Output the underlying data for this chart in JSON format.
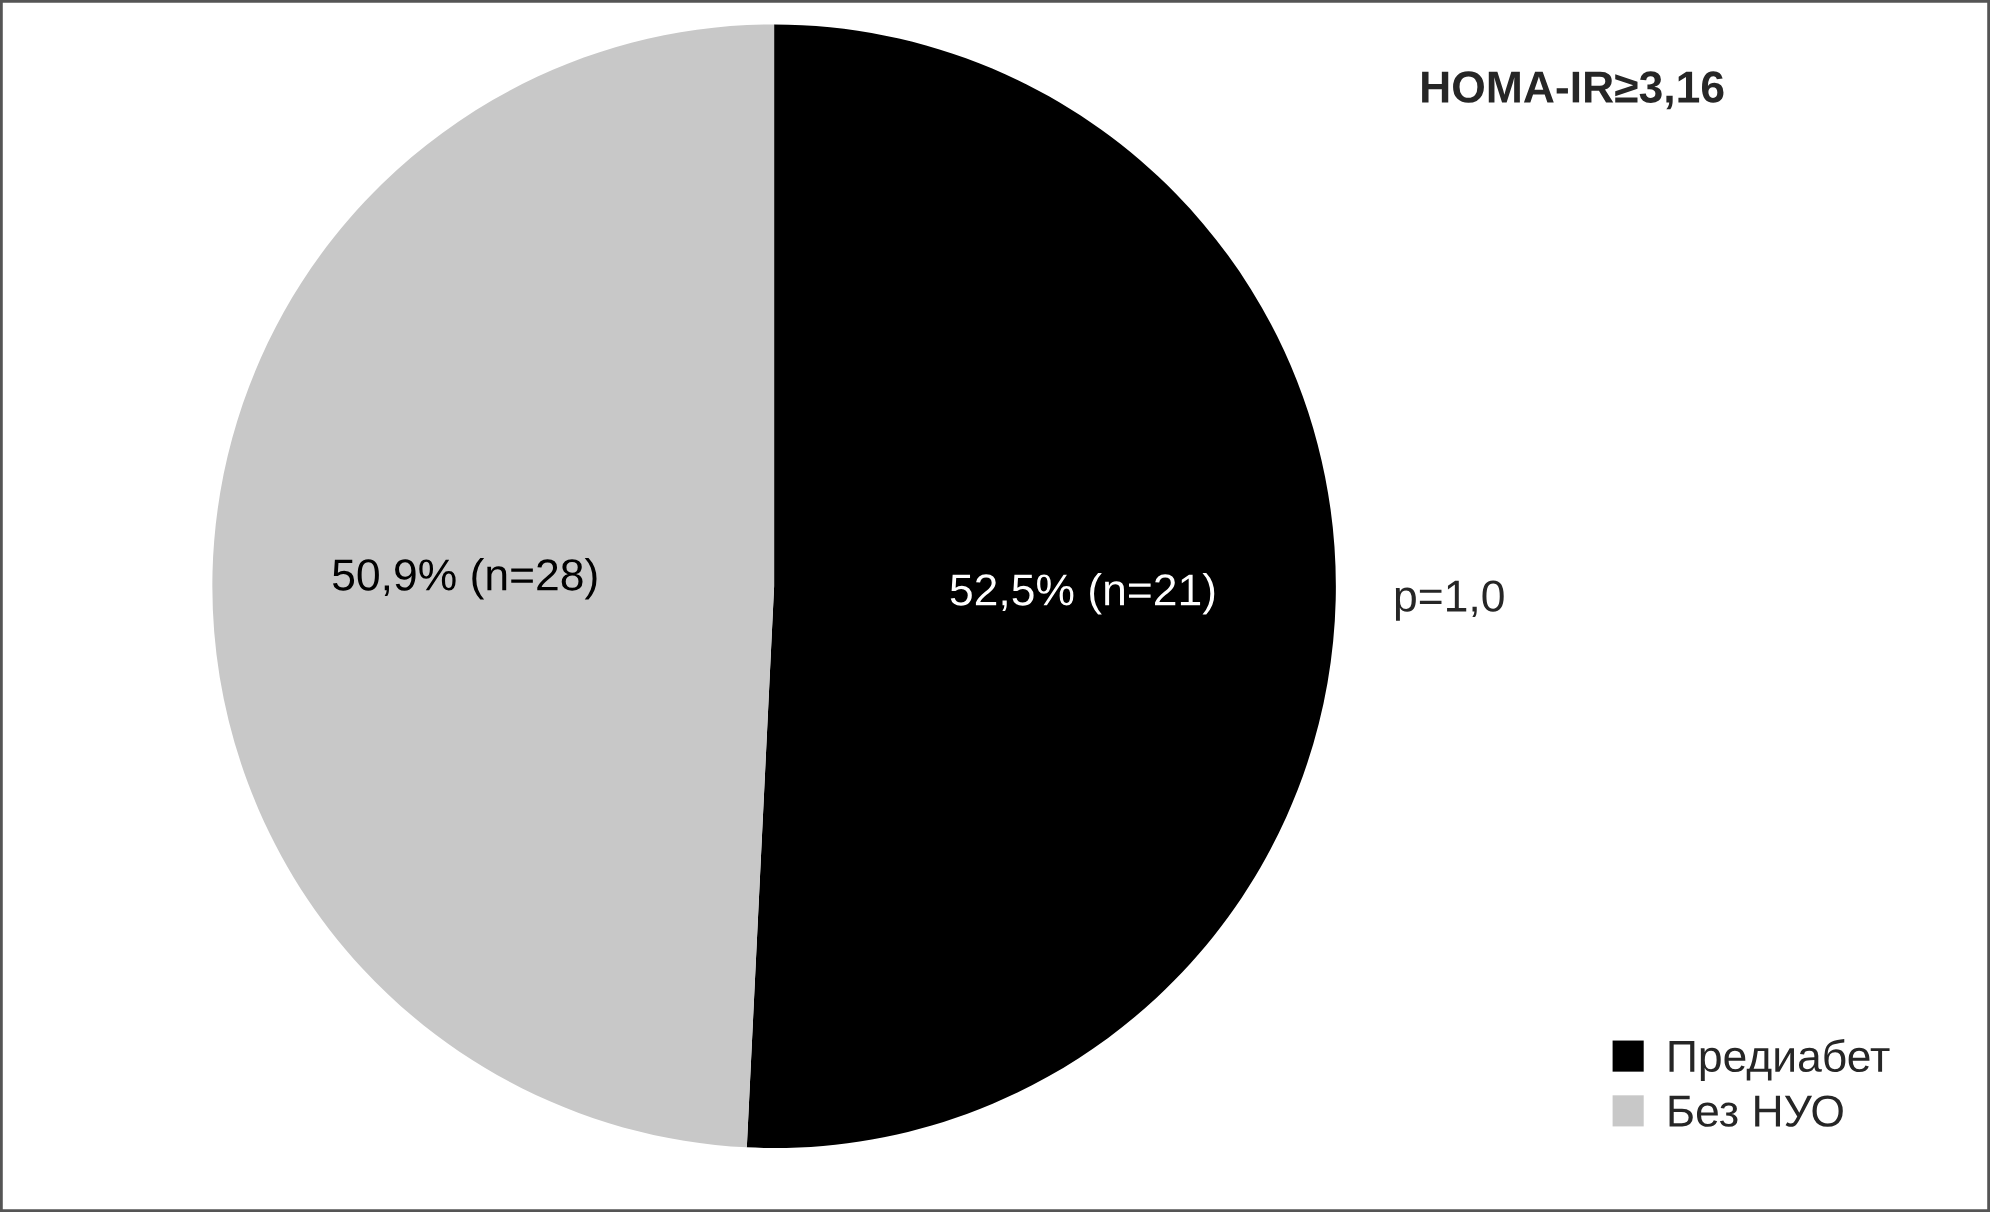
{
  "chart_data": {
    "type": "pie",
    "title": "HOMA-IR≥3,16",
    "categories": [
      "Предиабет",
      "Без НУО"
    ],
    "values": [
      52.5,
      50.9
    ],
    "colors": [
      "#000000",
      "#c8c8c8"
    ],
    "value_labels": [
      "52,5% (n=21)",
      "50,9% (n=28)"
    ],
    "annotations": [
      "p=1,0"
    ],
    "legend": "bottom right"
  }
}
